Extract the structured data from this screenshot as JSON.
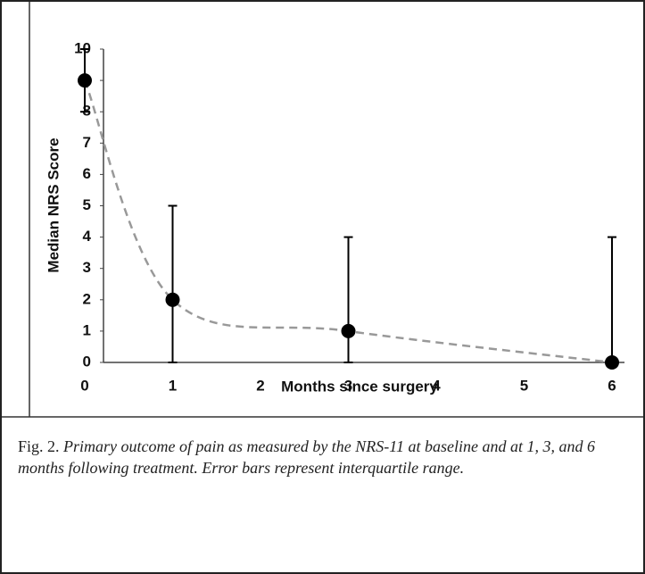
{
  "chart_data": {
    "type": "errorbar-line",
    "x": [
      0,
      1,
      3,
      6
    ],
    "values": [
      9,
      2,
      1,
      0
    ],
    "lower": [
      8,
      0,
      0,
      0
    ],
    "upper": [
      10,
      5,
      4,
      4
    ],
    "color": "#000000",
    "trend_color": "#999999",
    "xlim": [
      0,
      6
    ],
    "xticks": [
      0,
      1,
      2,
      3,
      4,
      5,
      6
    ],
    "ylim": [
      0,
      10
    ],
    "yticks": [
      0,
      1,
      2,
      3,
      4,
      5,
      6,
      7,
      8,
      9,
      10
    ],
    "xlabel": "Months since surgery",
    "ylabel": "Median NRS Score"
  },
  "figure": {
    "label": "Fig. 2.",
    "caption": "Primary outcome of pain as measured by the NRS-11 at baseline and at 1, 3, and 6 months following treatment. Error bars represent interquartile range."
  }
}
